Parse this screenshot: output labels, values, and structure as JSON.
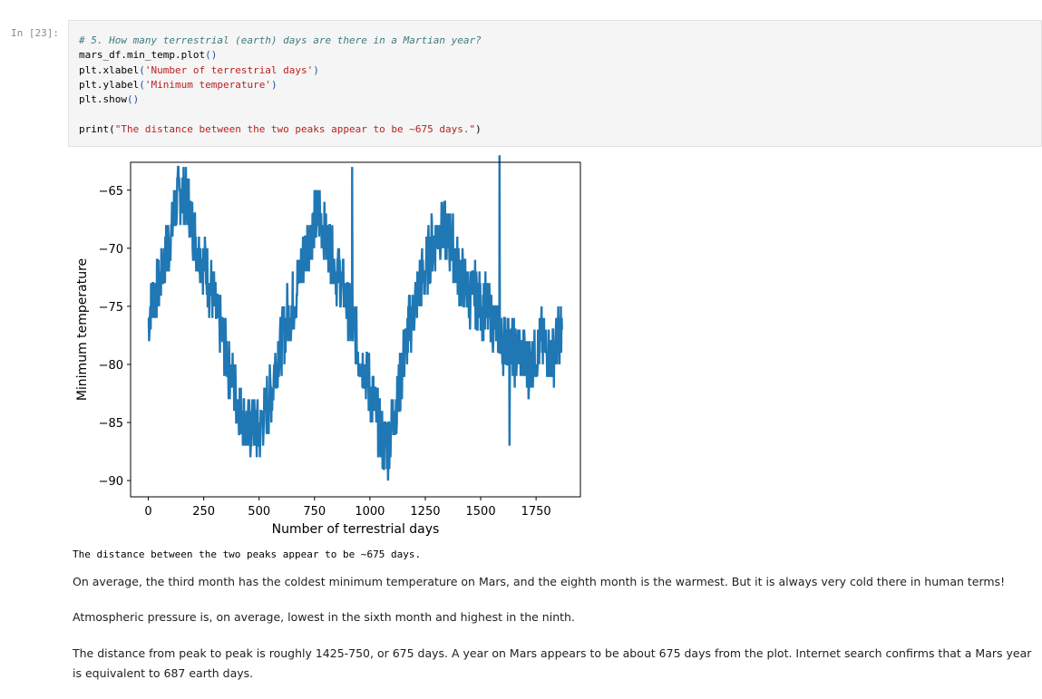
{
  "cell": {
    "prompt": "In [23]:",
    "code_lines": [
      [
        {
          "t": "# 5. How many terrestrial (earth) days are there in a Martian year?",
          "c": "comment"
        }
      ],
      [
        {
          "t": "mars_df.min_temp.plot",
          "c": ""
        },
        {
          "t": "()",
          "c": "paren"
        }
      ],
      [
        {
          "t": "plt.xlabel",
          "c": ""
        },
        {
          "t": "(",
          "c": "paren"
        },
        {
          "t": "'Number of terrestrial days'",
          "c": "str"
        },
        {
          "t": ")",
          "c": "paren"
        }
      ],
      [
        {
          "t": "plt.ylabel",
          "c": ""
        },
        {
          "t": "(",
          "c": "paren"
        },
        {
          "t": "'Minimum temperature'",
          "c": "str"
        },
        {
          "t": ")",
          "c": "paren"
        }
      ],
      [
        {
          "t": "plt.show",
          "c": ""
        },
        {
          "t": "()",
          "c": "paren"
        }
      ],
      [
        {
          "t": "",
          "c": ""
        }
      ],
      [
        {
          "t": "print",
          "c": ""
        },
        {
          "t": "(",
          "c": ""
        },
        {
          "t": "\"The distance between the two peaks appear to be ~675 days.\"",
          "c": "str"
        },
        {
          "t": ")",
          "c": ""
        }
      ]
    ]
  },
  "output": {
    "stdout": "The distance between the two peaks appear to be ~675 days."
  },
  "markdown": {
    "p1": "On average, the third month has the coldest minimum temperature on Mars, and the eighth month is the warmest. But it is always very cold there in human terms!",
    "p2": "Atmospheric pressure is, on average, lowest in the sixth month and highest in the ninth.",
    "p3": "The distance from peak to peak is roughly 1425-750, or 675 days. A year on Mars appears to be about 675 days from the plot. Internet search confirms that a Mars year is equivalent to 687 earth days."
  },
  "chart_data": {
    "type": "line",
    "xlabel": "Number of terrestrial days",
    "ylabel": "Minimum temperature",
    "xlim": [
      -80,
      1950
    ],
    "ylim": [
      -91.4,
      -62.6
    ],
    "xticks": [
      0,
      250,
      500,
      750,
      1000,
      1250,
      1500,
      1750
    ],
    "xtick_labels": [
      "0",
      "250",
      "500",
      "750",
      "1000",
      "1250",
      "1500",
      "1750"
    ],
    "yticks": [
      -65,
      -70,
      -75,
      -80,
      -85,
      -90
    ],
    "ytick_labels": [
      "−65",
      "−70",
      "−75",
      "−80",
      "−85",
      "−90"
    ],
    "color": "#1f77b4",
    "series": [
      {
        "x": [
          0,
          25,
          50,
          75,
          100,
          125,
          150,
          175,
          200,
          225,
          250,
          275,
          300,
          325,
          350,
          375,
          400,
          425,
          450,
          475,
          500,
          525,
          550,
          575,
          600,
          625,
          650,
          675,
          700,
          725,
          750,
          775,
          800,
          825,
          850,
          875,
          900,
          925,
          950,
          975,
          1000,
          1025,
          1050,
          1075,
          1100,
          1125,
          1150,
          1175,
          1200,
          1225,
          1250,
          1275,
          1300,
          1325,
          1350,
          1375,
          1400,
          1425,
          1450,
          1475,
          1500,
          1525,
          1550,
          1575,
          1600,
          1625,
          1650,
          1675,
          1700,
          1725,
          1750,
          1775,
          1800,
          1825,
          1850,
          1867
        ],
        "y": [
          -76,
          -74,
          -73,
          -71,
          -69,
          -66,
          -65,
          -66,
          -68,
          -70,
          -71,
          -73,
          -75,
          -77,
          -79,
          -81,
          -83,
          -84,
          -86,
          -85,
          -86,
          -84,
          -83,
          -80,
          -78,
          -76,
          -75,
          -73,
          -71,
          -69,
          -68,
          -67,
          -69,
          -70,
          -72,
          -73,
          -75,
          -77,
          -79,
          -80,
          -82,
          -84,
          -86,
          -87,
          -85,
          -83,
          -80,
          -77,
          -75,
          -73,
          -72,
          -70,
          -69,
          -68,
          -69,
          -70,
          -72,
          -73,
          -74,
          -74,
          -75,
          -75,
          -76,
          -77,
          -78,
          -78,
          -79,
          -79,
          -80,
          -80,
          -79,
          -78,
          -79,
          -79,
          -78,
          -77
        ]
      }
    ],
    "spikes": [
      {
        "x": 920,
        "y": -63
      },
      {
        "x": 1585,
        "y": -62
      },
      {
        "x": 1082,
        "y": -90
      },
      {
        "x": 1630,
        "y": -87
      }
    ]
  }
}
